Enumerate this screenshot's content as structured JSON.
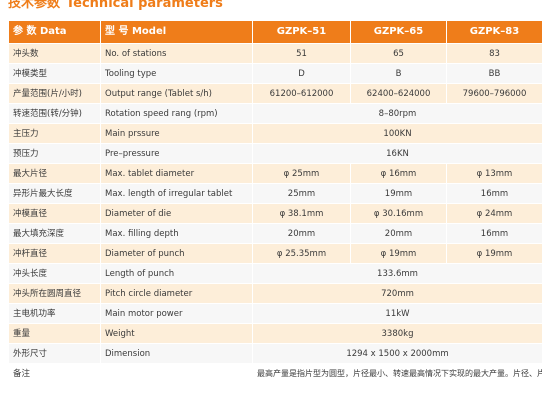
{
  "title": {
    "cn": "技术参数",
    "en": "Technical parameters"
  },
  "header": {
    "param": "参 数 Data",
    "model": "型 号 Model",
    "m1": "GZPK–51",
    "m2": "GZPK–65",
    "m3": "GZPK–83"
  },
  "rows": [
    {
      "cn": "冲头数",
      "en": "No. of stations",
      "v1": "51",
      "v2": "65",
      "v3": "83"
    },
    {
      "cn": "冲模类型",
      "en": "Tooling type",
      "v1": "D",
      "v2": "B",
      "v3": "BB"
    },
    {
      "cn": "产量范围(片/小时)",
      "en": "Output range (Tablet s/h)",
      "v1": "61200–612000",
      "v2": "62400–624000",
      "v3": "79600–796000"
    },
    {
      "cn": "转速范围(转/分钟)",
      "en": "Rotation speed rang (rpm)",
      "span": "8–80rpm"
    },
    {
      "cn": "主压力",
      "en": "Main prssure",
      "span": "100KN"
    },
    {
      "cn": "预压力",
      "en": "Pre–pressure",
      "span": "16KN"
    },
    {
      "cn": "最大片径",
      "en": "Max. tablet diameter",
      "v1": "φ 25mm",
      "v2": "φ 16mm",
      "v3": "φ 13mm"
    },
    {
      "cn": "异形片最大长度",
      "en": "Max. length of irregular tablet",
      "v1": "25mm",
      "v2": "19mm",
      "v3": "16mm"
    },
    {
      "cn": "冲模直径",
      "en": "Diameter of die",
      "v1": "φ 38.1mm",
      "v2": "φ 30.16mm",
      "v3": "φ 24mm"
    },
    {
      "cn": "最大填充深度",
      "en": "Max. filling depth",
      "v1": "20mm",
      "v2": "20mm",
      "v3": "16mm"
    },
    {
      "cn": "冲杆直径",
      "en": "Diameter of punch",
      "v1": "φ 25.35mm",
      "v2": "φ 19mm",
      "v3": "φ 19mm"
    },
    {
      "cn": "冲头长度",
      "en": "Length of punch",
      "span": "133.6mm"
    },
    {
      "cn": "冲头所在圆周直径",
      "en": "Pitch circle diameter",
      "span": "720mm"
    },
    {
      "cn": "主电机功率",
      "en": "Main motor power",
      "span": "11kW"
    },
    {
      "cn": "重量",
      "en": "Weight",
      "span": "3380kg"
    },
    {
      "cn": "外形尺寸",
      "en": "Dimension",
      "span": "1294 x 1500 x 2000mm"
    }
  ],
  "remark": {
    "label": "备注",
    "text": "最高产量是指片型为圆型，片径最小、转速最高情况下实现的最大产量。片径、片型不同，产量有所不同。"
  },
  "colors": {
    "accent": "#ef7d1a",
    "row_odd": "#fdeed9",
    "row_even": "#f7f7f7"
  }
}
